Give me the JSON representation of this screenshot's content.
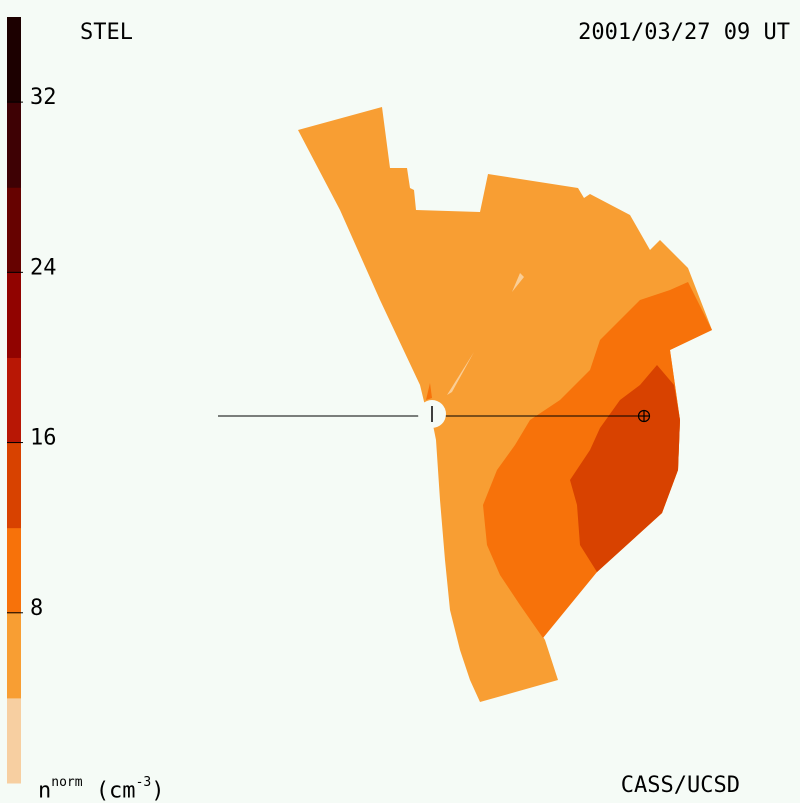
{
  "header": {
    "instrument": "STEL",
    "timestamp": "2001/03/27 09 UT"
  },
  "footer": {
    "credit": "CASS/UCSD",
    "unit_base": "n",
    "unit_sup": "norm",
    "unit_paren_open": "(cm",
    "unit_exp": "-3",
    "unit_paren_close": ")"
  },
  "chart_data": {
    "type": "heatmap",
    "title": "",
    "colorbar": {
      "range": [
        0,
        36
      ],
      "ticks": [
        {
          "value": 8,
          "label": "8"
        },
        {
          "value": 16,
          "label": "16"
        },
        {
          "value": 24,
          "label": "24"
        },
        {
          "value": 32,
          "label": "32"
        }
      ],
      "bands": [
        {
          "from": 0,
          "to": 4,
          "color": "#f7cfa1"
        },
        {
          "from": 4,
          "to": 8,
          "color": "#f89e33"
        },
        {
          "from": 8,
          "to": 12,
          "color": "#f7720a"
        },
        {
          "from": 12,
          "to": 16,
          "color": "#d84200"
        },
        {
          "from": 16,
          "to": 20,
          "color": "#b81705"
        },
        {
          "from": 20,
          "to": 24,
          "color": "#910300"
        },
        {
          "from": 24,
          "to": 28,
          "color": "#660200"
        },
        {
          "from": 28,
          "to": 32,
          "color": "#3e0104"
        },
        {
          "from": 32,
          "to": 36,
          "color": "#1c0000"
        }
      ]
    },
    "regions": [
      {
        "level": "4-8",
        "color": "#f89e33"
      },
      {
        "level": "8-12",
        "color": "#f7720a"
      },
      {
        "level": "12-16",
        "color": "#d84200"
      }
    ],
    "markers": [
      "sun",
      "earth"
    ]
  }
}
